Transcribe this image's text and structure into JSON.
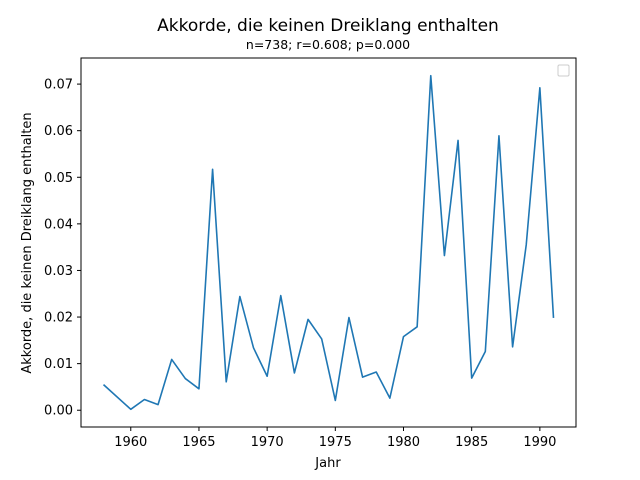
{
  "chart_data": {
    "type": "line",
    "title": "Akkorde, die keinen Dreiklang enthalten",
    "subtitle": "n=738; r=0.608; p=0.000",
    "xlabel": "Jahr",
    "ylabel": "Akkorde, die keinen Dreiklang enthalten",
    "xlim": [
      1956.35,
      1992.65
    ],
    "ylim": [
      -0.0036,
      0.0756
    ],
    "xticks": [
      1960,
      1965,
      1970,
      1975,
      1980,
      1985,
      1990
    ],
    "yticks": [
      0.0,
      0.01,
      0.02,
      0.03,
      0.04,
      0.05,
      0.06,
      0.07
    ],
    "ytick_labels": [
      "0.00",
      "0.01",
      "0.02",
      "0.03",
      "0.04",
      "0.05",
      "0.06",
      "0.07"
    ],
    "legend": "top-right (empty)",
    "grid": false,
    "series": [
      {
        "color": "#1f77b4",
        "x": [
          1958,
          1960,
          1961,
          1962,
          1963,
          1964,
          1965,
          1966,
          1967,
          1968,
          1969,
          1970,
          1971,
          1972,
          1973,
          1974,
          1975,
          1976,
          1977,
          1978,
          1979,
          1980,
          1981,
          1982,
          1983,
          1984,
          1985,
          1986,
          1987,
          1988,
          1989,
          1990,
          1991
        ],
        "y": [
          0.0055,
          0.0002,
          0.0023,
          0.0012,
          0.0109,
          0.0068,
          0.0046,
          0.0517,
          0.0061,
          0.0244,
          0.0134,
          0.0073,
          0.0246,
          0.008,
          0.0195,
          0.0153,
          0.0021,
          0.0199,
          0.0071,
          0.0082,
          0.0026,
          0.0158,
          0.0179,
          0.0718,
          0.0332,
          0.0579,
          0.0069,
          0.0126,
          0.0589,
          0.0136,
          0.0355,
          0.0692,
          0.0198
        ]
      }
    ]
  }
}
